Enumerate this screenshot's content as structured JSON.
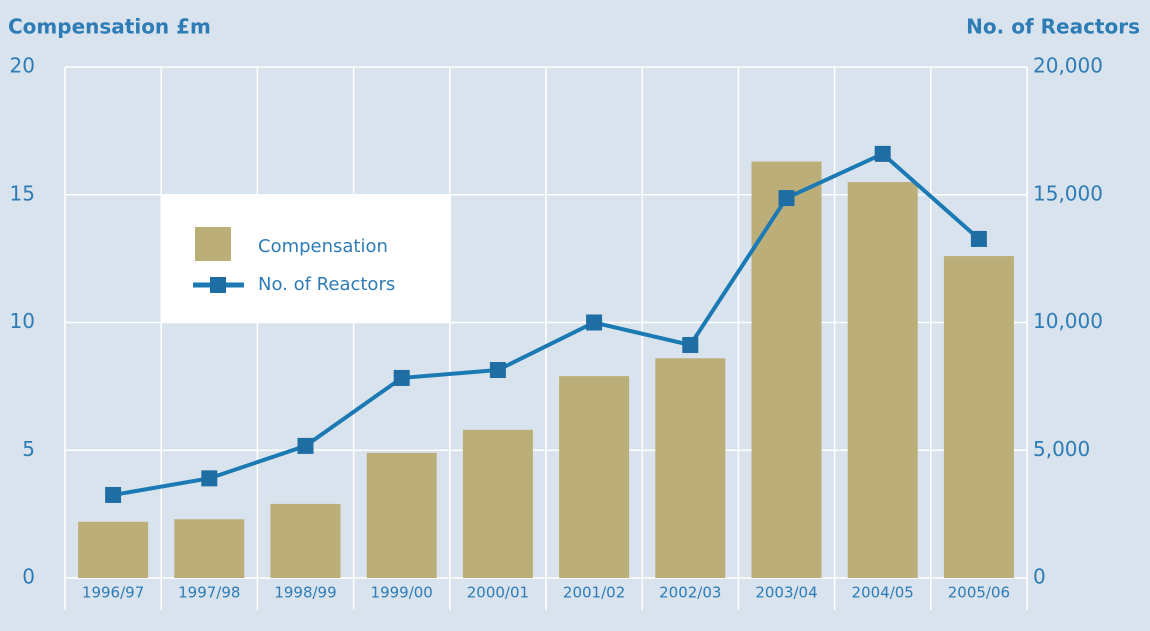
{
  "chart_data": {
    "type": "bar-line",
    "y_axis_title": "Compensation £m",
    "y2_axis_title": "No. of Reactors",
    "categories": [
      "1996/97",
      "1997/98",
      "1998/99",
      "1999/00",
      "2000/01",
      "2001/02",
      "2002/03",
      "2003/04",
      "2004/05",
      "2005/06"
    ],
    "series": [
      {
        "name": "Compensation",
        "type": "bar",
        "color": "#bcae79",
        "values": [
          2.2,
          2.3,
          2.9,
          4.9,
          5.8,
          7.9,
          8.6,
          16.3,
          15.5,
          12.6
        ]
      },
      {
        "name": "No. of Reactors",
        "type": "line",
        "axis": "y2",
        "color": "#1b7ab3",
        "values": [
          3250,
          3900,
          5170,
          7830,
          8140,
          10000,
          9120,
          14870,
          16600,
          13270
        ]
      }
    ],
    "ylim": [
      0,
      20
    ],
    "yticks": [
      0,
      5,
      10,
      15,
      20
    ],
    "y2lim": [
      0,
      20000
    ],
    "y2ticks": [
      0,
      {
        "value": 5000,
        "label": "5,000"
      },
      {
        "value": 10000,
        "label": "10,000"
      },
      {
        "value": 15000,
        "label": "15,000"
      },
      {
        "value": 20000,
        "label": "20,000"
      }
    ],
    "grid": true,
    "legend": "upper left"
  }
}
